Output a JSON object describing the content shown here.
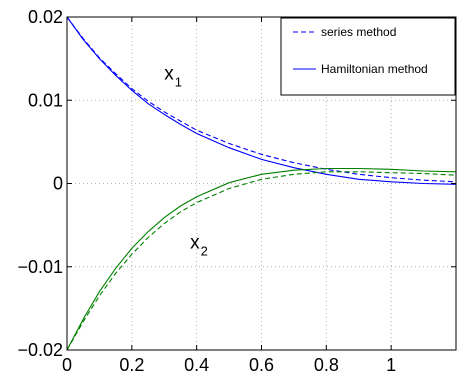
{
  "chart_data": {
    "type": "line",
    "title": "",
    "xlabel": "",
    "ylabel": "",
    "xlim": [
      0,
      1.2
    ],
    "ylim": [
      -0.02,
      0.02
    ],
    "grid": true,
    "x_ticks": [
      0,
      0.2,
      0.4,
      0.6,
      0.8,
      1
    ],
    "x_tick_labels": [
      "0",
      "0.2",
      "0.4",
      "0.6",
      "0.8",
      "1"
    ],
    "y_ticks": [
      0.02,
      0.01,
      0,
      -0.01,
      -0.02
    ],
    "y_tick_labels": [
      "0.02",
      "0.01",
      "0",
      "−0.01",
      "−0.02"
    ],
    "legend": {
      "position": "top-right",
      "entries": [
        {
          "label": "series method",
          "style": "dashed",
          "color": "#0000ff"
        },
        {
          "label": "Hamiltonian method",
          "style": "solid",
          "color": "#0000ff"
        }
      ]
    },
    "annotations": [
      {
        "text": "x",
        "sub": "1",
        "x": 0.3,
        "y": 0.0125
      },
      {
        "text": "x",
        "sub": "2",
        "x": 0.38,
        "y": -0.0078
      }
    ],
    "series": [
      {
        "var": "x1",
        "method": "Hamiltonian",
        "color": "#0000ff",
        "style": "solid",
        "x": [
          0,
          0.05,
          0.1,
          0.15,
          0.2,
          0.25,
          0.3,
          0.35,
          0.4,
          0.5,
          0.6,
          0.7,
          0.8,
          0.9,
          1.0,
          1.1,
          1.2
        ],
        "values": [
          0.02,
          0.0173,
          0.015,
          0.013,
          0.0112,
          0.0096,
          0.0083,
          0.0071,
          0.006,
          0.0043,
          0.0029,
          0.0019,
          0.0011,
          0.0005,
          0.0002,
          0.0,
          -0.0001
        ]
      },
      {
        "var": "x1",
        "method": "series",
        "color": "#0000ff",
        "style": "dashed",
        "x": [
          0,
          0.05,
          0.1,
          0.15,
          0.2,
          0.25,
          0.3,
          0.35,
          0.4,
          0.5,
          0.6,
          0.7,
          0.8,
          0.9,
          1.0,
          1.1,
          1.2
        ],
        "values": [
          0.02,
          0.0174,
          0.0151,
          0.0132,
          0.0114,
          0.0099,
          0.0086,
          0.0075,
          0.0064,
          0.0048,
          0.0035,
          0.0025,
          0.0017,
          0.0011,
          0.0007,
          0.0004,
          0.0002
        ]
      },
      {
        "var": "x2",
        "method": "Hamiltonian",
        "color": "#008000",
        "style": "solid",
        "x": [
          0,
          0.05,
          0.1,
          0.15,
          0.2,
          0.25,
          0.3,
          0.35,
          0.4,
          0.5,
          0.6,
          0.7,
          0.8,
          0.9,
          1.0,
          1.1,
          1.2
        ],
        "values": [
          -0.02,
          -0.0163,
          -0.013,
          -0.0102,
          -0.0078,
          -0.0058,
          -0.0041,
          -0.0027,
          -0.0016,
          0.0001,
          0.0011,
          0.0016,
          0.0018,
          0.0018,
          0.0017,
          0.0015,
          0.0014
        ]
      },
      {
        "var": "x2",
        "method": "series",
        "color": "#008000",
        "style": "dashed",
        "x": [
          0,
          0.05,
          0.1,
          0.15,
          0.2,
          0.25,
          0.3,
          0.35,
          0.4,
          0.5,
          0.6,
          0.7,
          0.8,
          0.9,
          1.0,
          1.1,
          1.2
        ],
        "values": [
          -0.02,
          -0.0166,
          -0.0135,
          -0.0108,
          -0.0085,
          -0.0065,
          -0.0048,
          -0.0034,
          -0.0023,
          -0.0006,
          0.0005,
          0.0011,
          0.0014,
          0.0014,
          0.0013,
          0.0012,
          0.001
        ]
      }
    ]
  }
}
